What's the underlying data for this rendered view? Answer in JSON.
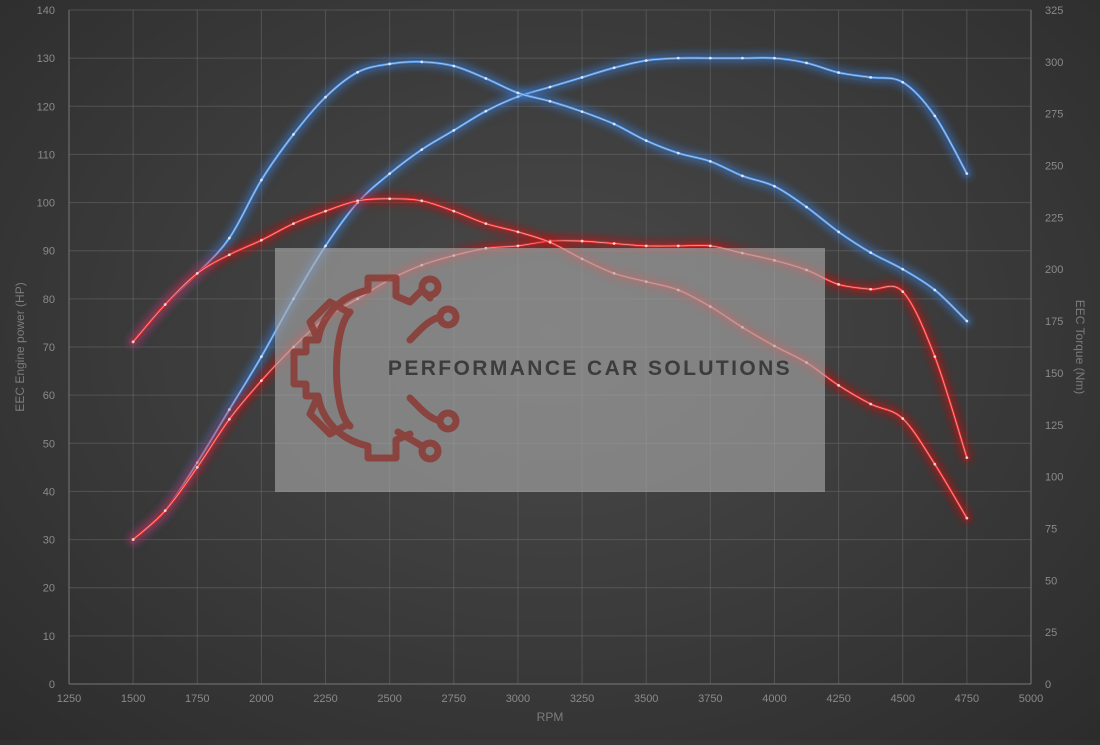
{
  "chart_data": {
    "type": "line",
    "title": "",
    "xlabel": "RPM",
    "ylabel_left": "EEC Engine power (HP)",
    "ylabel_right": "EEC Torque (Nm)",
    "xlim": [
      1250,
      5000
    ],
    "ylim_left": [
      0,
      140
    ],
    "ylim_right": [
      0,
      325
    ],
    "x_ticks": [
      1250,
      1500,
      1750,
      2000,
      2250,
      2500,
      2750,
      3000,
      3250,
      3500,
      3750,
      4000,
      4250,
      4500,
      4750,
      5000
    ],
    "y_ticks_left": [
      0,
      10,
      20,
      30,
      40,
      50,
      60,
      70,
      80,
      90,
      100,
      110,
      120,
      130,
      140
    ],
    "y_ticks_right": [
      0,
      25,
      50,
      75,
      100,
      125,
      150,
      175,
      200,
      225,
      250,
      275,
      300,
      325
    ],
    "grid": true,
    "colors": {
      "tuned": "#4d8fe0",
      "stock": "#e02828",
      "tuned_glow": "#3a7bd5",
      "stock_glow": "#d01010"
    },
    "series": [
      {
        "axis": "left",
        "group": "tuned",
        "x": [
          1500,
          1625,
          1750,
          1875,
          2000,
          2125,
          2250,
          2375,
          2500,
          2625,
          2750,
          2875,
          3000,
          3125,
          3250,
          3375,
          3500,
          3625,
          3750,
          3875,
          4000,
          4125,
          4250,
          4375,
          4500,
          4625,
          4750
        ],
        "values": [
          30,
          36,
          46,
          57,
          68,
          80,
          91,
          100,
          106,
          111,
          115,
          119,
          122,
          124,
          126,
          128,
          129.5,
          130,
          130,
          130,
          130,
          129,
          127,
          126,
          125,
          118,
          106
        ]
      },
      {
        "axis": "right",
        "group": "tuned",
        "x": [
          1500,
          1625,
          1750,
          1875,
          2000,
          2125,
          2250,
          2375,
          2500,
          2625,
          2750,
          2875,
          3000,
          3125,
          3250,
          3375,
          3500,
          3625,
          3750,
          3875,
          4000,
          4125,
          4250,
          4375,
          4500,
          4625,
          4750
        ],
        "values": [
          165,
          183,
          198,
          215,
          243,
          265,
          283,
          295,
          299,
          300,
          298,
          292,
          285,
          281,
          276,
          270,
          262,
          256,
          252,
          245,
          240,
          230,
          218,
          208,
          200,
          190,
          175
        ]
      },
      {
        "axis": "left",
        "group": "stock",
        "x": [
          1500,
          1625,
          1750,
          1875,
          2000,
          2125,
          2250,
          2375,
          2500,
          2625,
          2750,
          2875,
          3000,
          3125,
          3250,
          3375,
          3500,
          3625,
          3750,
          3875,
          4000,
          4125,
          4250,
          4375,
          4500,
          4625,
          4750
        ],
        "values": [
          30,
          36,
          45,
          55,
          63,
          70,
          76,
          80,
          84,
          87,
          89,
          90.5,
          91,
          92,
          92,
          91.5,
          91,
          91,
          91,
          89.5,
          88,
          86,
          83,
          82,
          81.5,
          68,
          47
        ]
      },
      {
        "axis": "right",
        "group": "stock",
        "x": [
          1500,
          1625,
          1750,
          1875,
          2000,
          2125,
          2250,
          2375,
          2500,
          2625,
          2750,
          2875,
          3000,
          3125,
          3250,
          3375,
          3500,
          3625,
          3750,
          3875,
          4000,
          4125,
          4250,
          4375,
          4500,
          4625,
          4750
        ],
        "values": [
          165,
          183,
          198,
          207,
          214,
          222,
          228,
          233,
          234,
          233,
          228,
          222,
          218,
          213,
          205,
          198,
          194,
          190,
          182,
          172,
          163,
          155,
          144,
          135,
          128,
          106,
          80
        ]
      }
    ]
  },
  "watermark": {
    "text": "PERFORMANCE CAR SOLUTIONS",
    "logo_icon": "gear-circuit-logo-icon",
    "panel_color": "#a9a9a9",
    "logo_color": "#8c3a34"
  }
}
